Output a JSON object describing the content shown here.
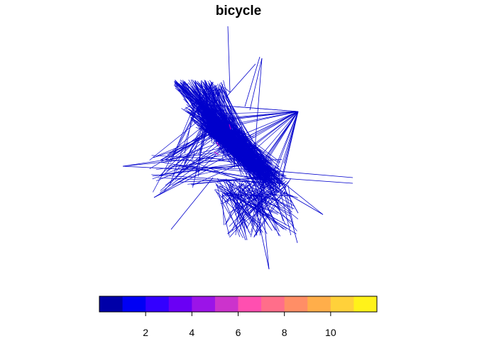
{
  "chart_data": {
    "type": "line",
    "title": "bicycle",
    "xlabel": "",
    "ylabel": "",
    "grid": false,
    "axes_visible": false,
    "line_color": "#0000CC",
    "highlight_color": "#CC00CC",
    "legend": {
      "position": "bottom",
      "type": "colorbar",
      "range": [
        0,
        12
      ],
      "ticks": [
        2,
        4,
        6,
        8,
        10
      ],
      "tick_labels": [
        "2",
        "4",
        "6",
        "8",
        "10"
      ],
      "colors": [
        "#0000A8",
        "#0000F5",
        "#3300FF",
        "#6A00F5",
        "#9B14E8",
        "#CC33CC",
        "#FF4FB0",
        "#FF6E8A",
        "#FF8E66",
        "#FFAE4A",
        "#FFD13A",
        "#FFF21A"
      ]
    }
  }
}
